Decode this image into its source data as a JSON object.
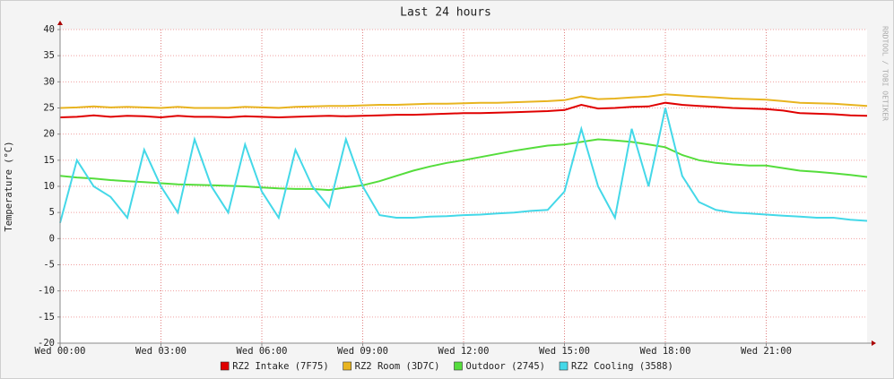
{
  "chart_data": {
    "type": "line",
    "title": "Last 24 hours",
    "ylabel": "Temperature (°C)",
    "watermark": "RRDTOOL / TOBI OETIKER",
    "x": [
      0,
      0.5,
      1,
      1.5,
      2,
      2.5,
      3,
      3.5,
      4,
      4.5,
      5,
      5.5,
      6,
      6.5,
      7,
      7.5,
      8,
      8.5,
      9,
      9.5,
      10,
      10.5,
      11,
      11.5,
      12,
      12.5,
      13,
      13.5,
      14,
      14.5,
      15,
      15.5,
      16,
      16.5,
      17,
      17.5,
      18,
      18.5,
      19,
      19.5,
      20,
      20.5,
      21,
      21.5,
      22,
      22.5,
      23,
      23.5,
      24
    ],
    "xlim": [
      0,
      24
    ],
    "xticks": [
      {
        "value": 0,
        "label": "Wed 00:00"
      },
      {
        "value": 3,
        "label": "Wed 03:00"
      },
      {
        "value": 6,
        "label": "Wed 06:00"
      },
      {
        "value": 9,
        "label": "Wed 09:00"
      },
      {
        "value": 12,
        "label": "Wed 12:00"
      },
      {
        "value": 15,
        "label": "Wed 15:00"
      },
      {
        "value": 18,
        "label": "Wed 18:00"
      },
      {
        "value": 21,
        "label": "Wed 21:00"
      }
    ],
    "ylim": [
      -20,
      40
    ],
    "yticks": [
      -20,
      -15,
      -10,
      -5,
      0,
      5,
      10,
      15,
      20,
      25,
      30,
      35,
      40
    ],
    "grid": true,
    "legend": "bottom",
    "series": [
      {
        "name": "RZ2 Intake (7F75)",
        "color": "#e00000",
        "values": [
          23.2,
          23.3,
          23.6,
          23.3,
          23.5,
          23.4,
          23.2,
          23.5,
          23.3,
          23.3,
          23.2,
          23.4,
          23.3,
          23.2,
          23.3,
          23.4,
          23.5,
          23.4,
          23.5,
          23.6,
          23.7,
          23.7,
          23.8,
          23.9,
          24,
          24,
          24.1,
          24.2,
          24.3,
          24.4,
          24.6,
          25.6,
          24.9,
          25,
          25.2,
          25.3,
          26,
          25.6,
          25.4,
          25.2,
          25,
          24.9,
          24.8,
          24.5,
          24,
          23.9,
          23.8,
          23.6,
          23.5
        ]
      },
      {
        "name": "RZ2 Room (3D7C)",
        "color": "#e8b420",
        "values": [
          25,
          25.1,
          25.3,
          25.1,
          25.2,
          25.1,
          25,
          25.2,
          25,
          25,
          25,
          25.2,
          25.1,
          25,
          25.2,
          25.3,
          25.4,
          25.4,
          25.5,
          25.6,
          25.6,
          25.7,
          25.8,
          25.8,
          25.9,
          26,
          26,
          26.1,
          26.2,
          26.3,
          26.5,
          27.2,
          26.7,
          26.8,
          27,
          27.2,
          27.6,
          27.4,
          27.2,
          27,
          26.8,
          26.7,
          26.6,
          26.3,
          26,
          25.9,
          25.8,
          25.6,
          25.4
        ]
      },
      {
        "name": "Outdoor (2745)",
        "color": "#55dd3c",
        "values": [
          12,
          11.7,
          11.5,
          11.2,
          11,
          10.8,
          10.6,
          10.4,
          10.3,
          10.2,
          10.1,
          10,
          9.8,
          9.6,
          9.5,
          9.5,
          9.3,
          9.8,
          10.2,
          11,
          12,
          13,
          13.8,
          14.5,
          15,
          15.6,
          16.2,
          16.8,
          17.3,
          17.8,
          18,
          18.5,
          19,
          18.8,
          18.5,
          18,
          17.5,
          16,
          15,
          14.5,
          14.2,
          14,
          14,
          13.5,
          13,
          12.8,
          12.5,
          12.2,
          11.8
        ]
      },
      {
        "name": "RZ2 Cooling (3588)",
        "color": "#44d8e8",
        "values": [
          3,
          15,
          10,
          8,
          4,
          17,
          10,
          5,
          19,
          10,
          5,
          18,
          9,
          4,
          17,
          10,
          6,
          19,
          10,
          4.5,
          4,
          4,
          4.2,
          4.3,
          4.5,
          4.6,
          4.8,
          5,
          5.3,
          5.5,
          9,
          21,
          10,
          4,
          21,
          10,
          25,
          12,
          7,
          5.5,
          5,
          4.8,
          4.6,
          4.4,
          4.2,
          4,
          4,
          3.6,
          3.4
        ]
      }
    ]
  }
}
